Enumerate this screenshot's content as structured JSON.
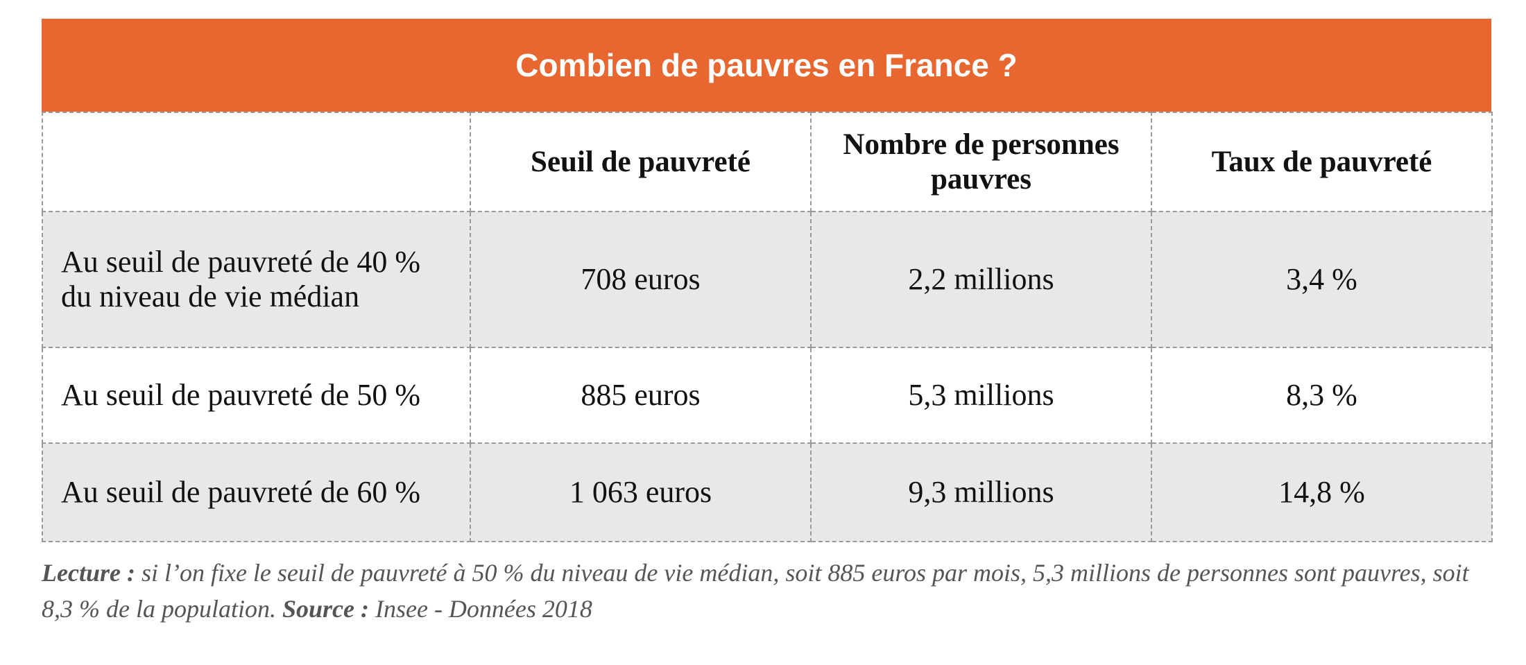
{
  "title": "Combien de pauvres en France ?",
  "columns": [
    "",
    "Seuil de pauvreté",
    "Nombre de personnes pauvres",
    "Taux de pauvreté"
  ],
  "rows": [
    {
      "label": "Au seuil de pauvreté de 40 % du niveau de vie médian",
      "seuil": "708 euros",
      "nombre": "2,2 millions",
      "taux": "3,4 %"
    },
    {
      "label": "Au seuil de pauvreté de 50 %",
      "seuil": "885 euros",
      "nombre": "5,3 millions",
      "taux": "8,3 %"
    },
    {
      "label": "Au seuil de pauvreté de 60 %",
      "seuil": "1 063 euros",
      "nombre": "9,3 millions",
      "taux": "14,8 %"
    }
  ],
  "footer": {
    "lecture_label": "Lecture :",
    "lecture_text": " si l’on fixe le seuil de pauvreté à 50 % du niveau de vie médian, soit 885 euros par mois, 5,3 millions de personnes sont pauvres, soit 8,3 % de la population. ",
    "source_label": "Source :",
    "source_text": " Insee - Données 2018"
  },
  "colors": {
    "header": "#E8662F",
    "stripe": "#E8E8E8"
  }
}
